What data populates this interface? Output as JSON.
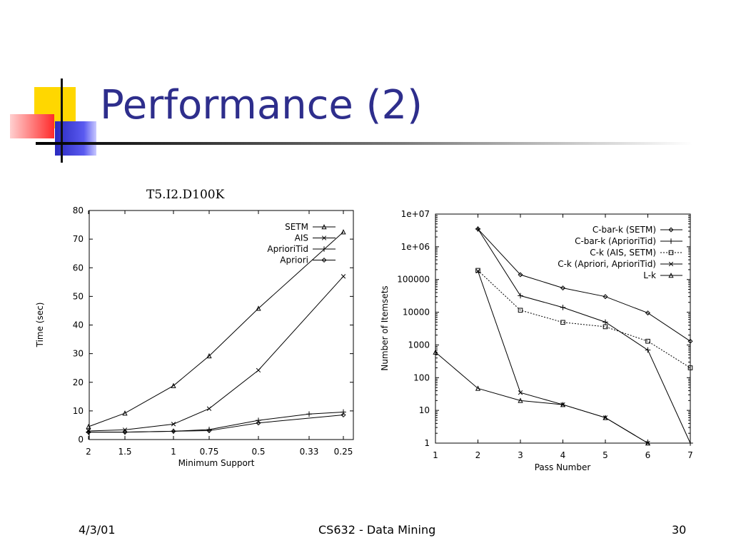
{
  "slide": {
    "title": "Performance (2)",
    "colors": {
      "title": "#2E2E8C",
      "deco_yellow": "#FFD700",
      "deco_red": "#FF4444",
      "deco_blue": "#3333CC"
    }
  },
  "footer": {
    "date": "4/3/01",
    "course": "CS632 - Data Mining",
    "page": "30"
  },
  "chart_data": [
    {
      "type": "line",
      "title": "T5.I2.D100K",
      "xlabel": "Minimum Support",
      "ylabel": "Time (sec)",
      "categories": [
        "2",
        "1.5",
        "1",
        "0.75",
        "0.5",
        "0.33",
        "0.25"
      ],
      "y_ticks": [
        "0",
        "10",
        "20",
        "30",
        "40",
        "50",
        "60",
        "70",
        "80"
      ],
      "ylim": [
        0,
        80
      ],
      "grid": false,
      "legend_position": "top-right",
      "series": [
        {
          "name": "SETM",
          "marker": "triangle",
          "values": [
            4.5,
            9.2,
            18.8,
            29.2,
            45.8,
            null,
            72.5
          ]
        },
        {
          "name": "AIS",
          "marker": "x",
          "values": [
            3.0,
            3.4,
            5.4,
            10.8,
            24.2,
            null,
            57.0
          ]
        },
        {
          "name": "AprioriTid",
          "marker": "plus",
          "values": [
            2.6,
            2.6,
            2.9,
            3.5,
            6.7,
            8.9,
            9.6
          ]
        },
        {
          "name": "Apriori",
          "marker": "diamond",
          "values": [
            2.6,
            2.6,
            2.9,
            3.1,
            5.8,
            null,
            8.6
          ]
        }
      ]
    },
    {
      "type": "line",
      "xlabel": "Pass Number",
      "ylabel": "Number of Itemsets",
      "x_ticks": [
        1,
        2,
        3,
        4,
        5,
        6,
        7
      ],
      "y_ticks": [
        "1",
        "10",
        "100",
        "1000",
        "10000",
        "100000",
        "1e+06",
        "1e+07"
      ],
      "y_scale": "log",
      "ylim": [
        1,
        10000000
      ],
      "xlim": [
        1,
        7
      ],
      "grid": false,
      "legend_position": "top-right",
      "series": [
        {
          "name": "C-bar-k (SETM)",
          "marker": "diamond",
          "dash": "solid",
          "x": [
            2,
            3,
            4,
            5,
            6,
            7
          ],
          "values": [
            3500000,
            140000,
            55000,
            30000,
            9500,
            1300
          ]
        },
        {
          "name": "C-bar-k (AprioriTid)",
          "marker": "plus",
          "dash": "solid",
          "x": [
            2,
            3,
            4,
            5,
            6,
            7
          ],
          "values": [
            3500000,
            32000,
            14000,
            5000,
            700,
            1
          ]
        },
        {
          "name": "C-k (AIS, SETM)",
          "marker": "square",
          "dash": "dotted",
          "x": [
            2,
            3,
            4,
            5,
            6,
            7
          ],
          "values": [
            190000,
            11500,
            4900,
            3600,
            1300,
            200
          ]
        },
        {
          "name": "C-k (Apriori, AprioriTid)",
          "marker": "x",
          "dash": "solid",
          "x": [
            2,
            3,
            4,
            5,
            6
          ],
          "values": [
            180000,
            35,
            15,
            6,
            1
          ]
        },
        {
          "name": "L-k",
          "marker": "triangle",
          "dash": "solid",
          "x": [
            1,
            2,
            3,
            4,
            5,
            6
          ],
          "values": [
            600,
            47,
            20,
            15,
            6,
            1
          ]
        }
      ]
    }
  ]
}
